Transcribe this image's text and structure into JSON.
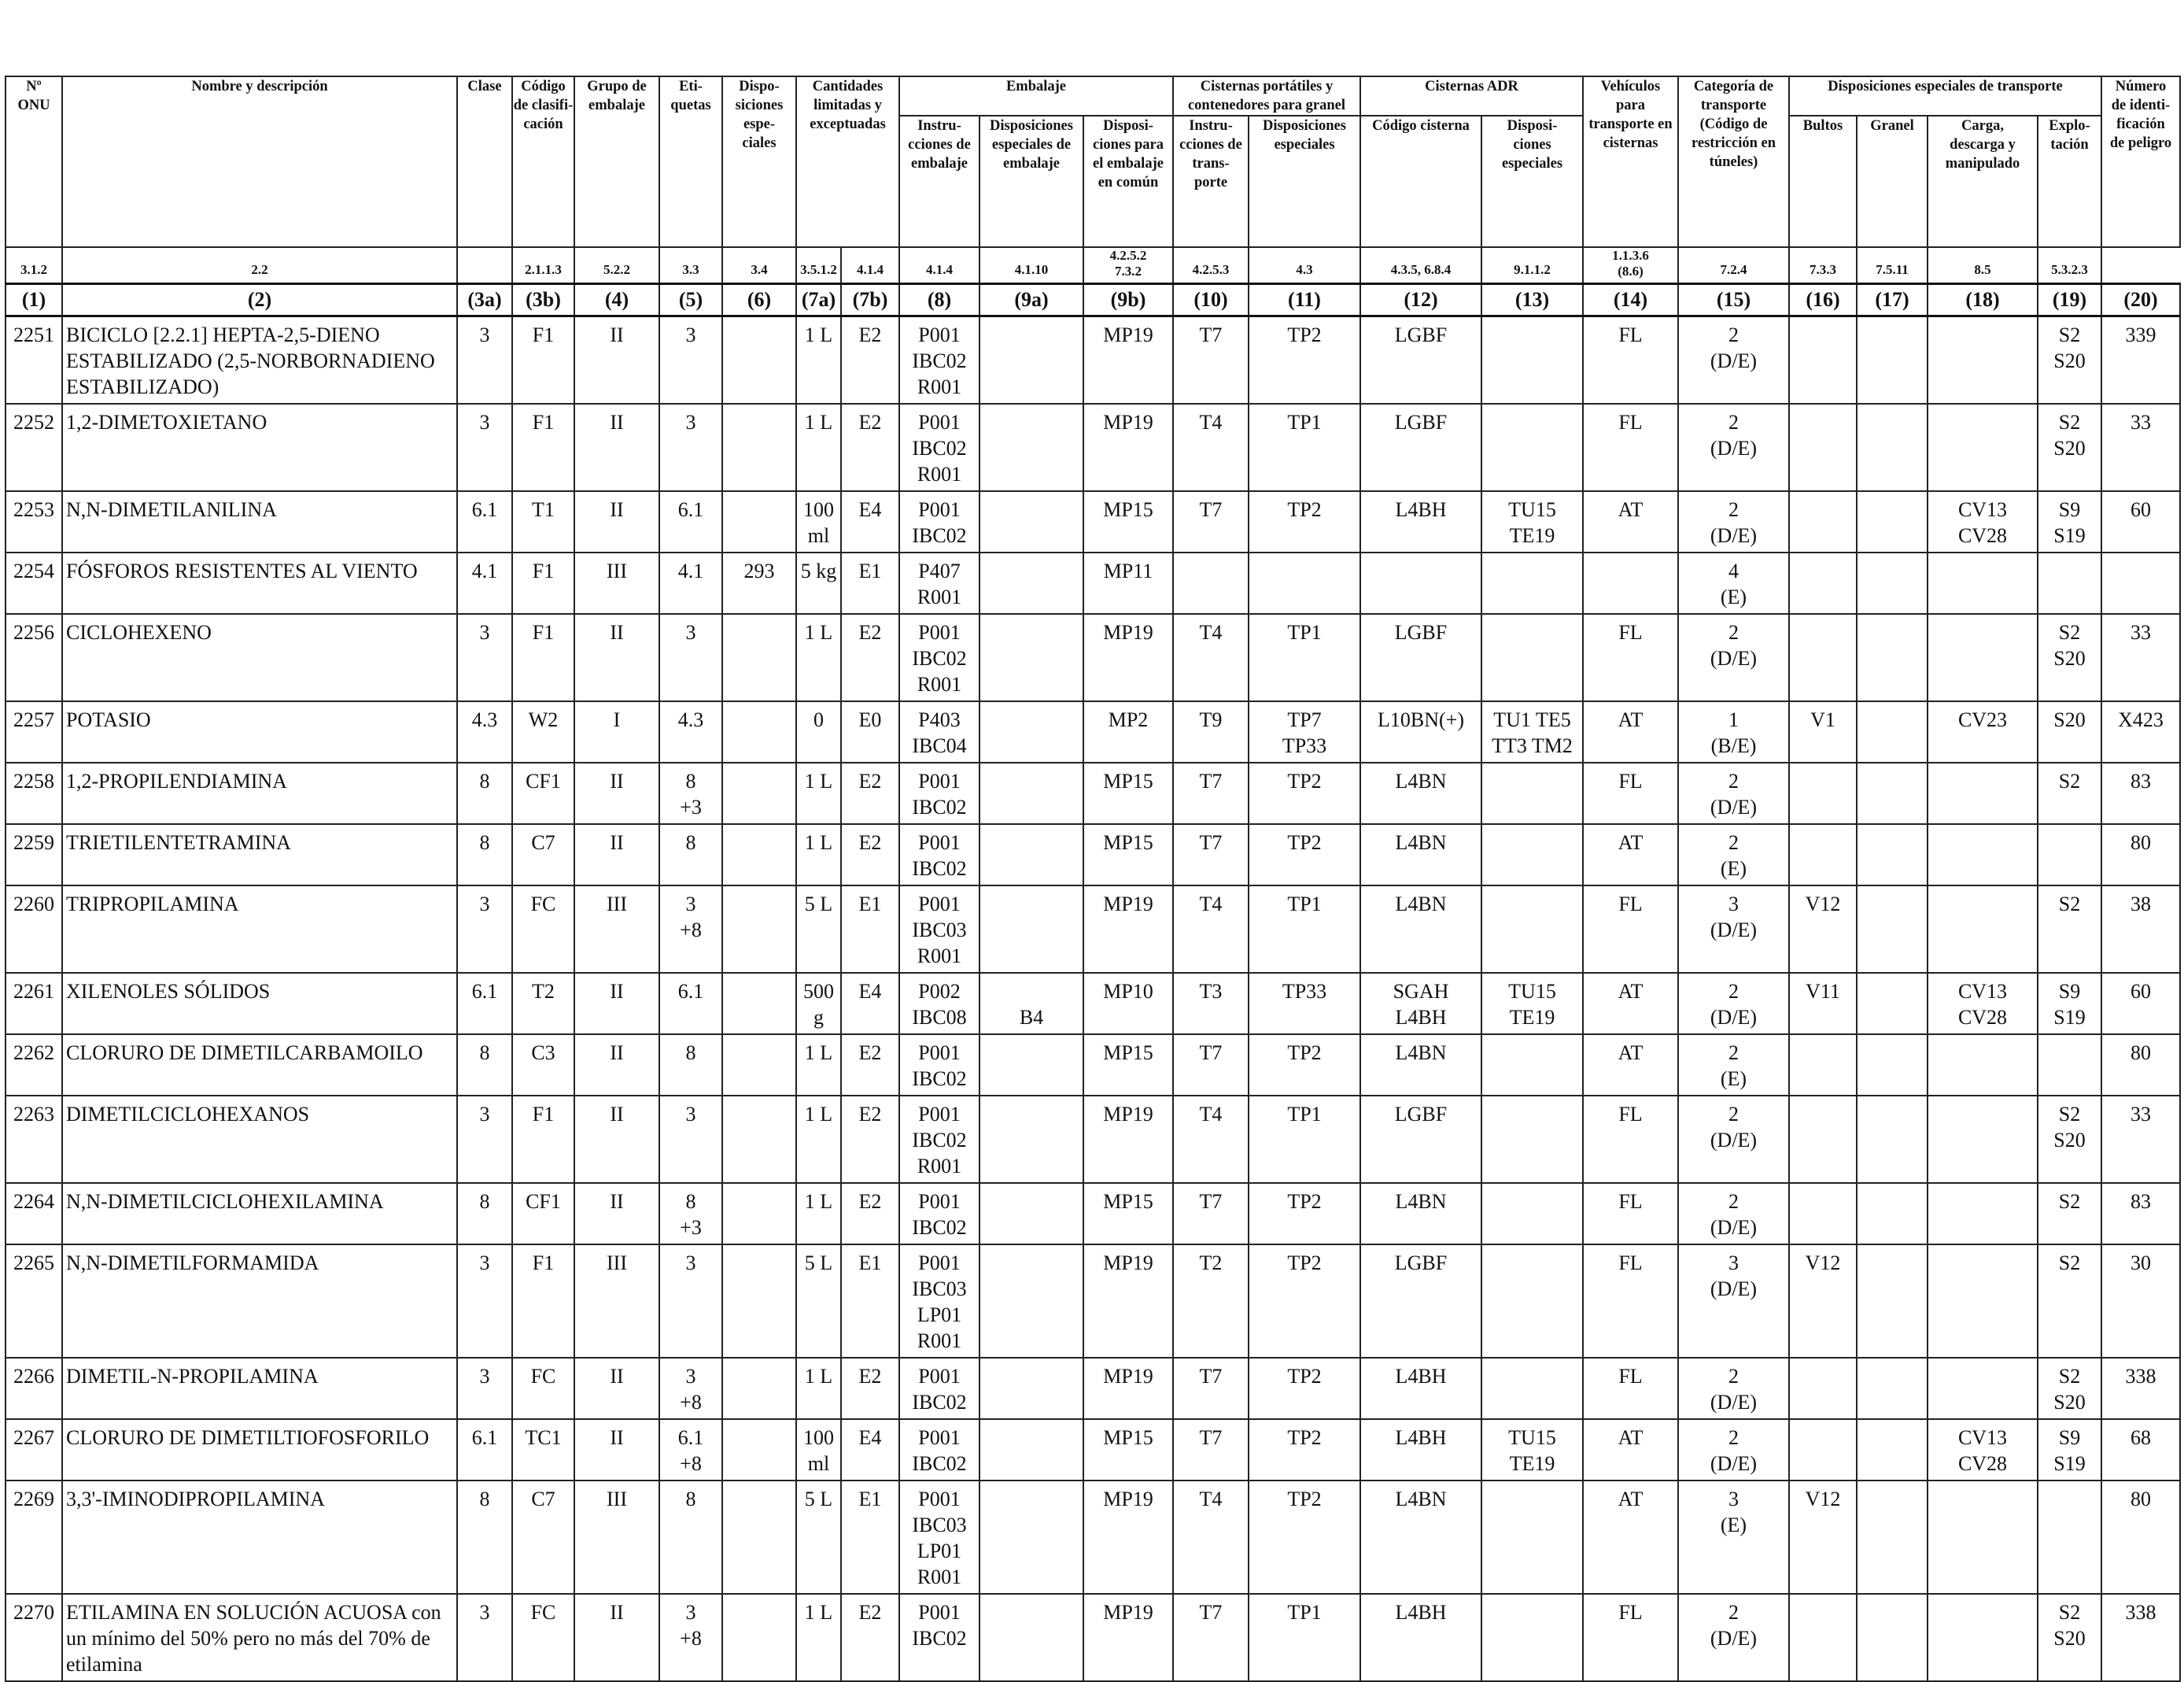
{
  "headers": {
    "onu": "Nº\nONU",
    "name": "Nombre y descripción",
    "clase": "Clase",
    "codigo": "Código\nde clasifi-\ncación",
    "grupo": "Grupo de\nembalaje",
    "etiquetas": "Eti-\nquetas",
    "dispo": "Dispo-\nsiciones\nespe-\nciales",
    "cantidades": "Cantidades\nlimitadas y\nexceptuadas",
    "embalaje": "Embalaje",
    "instr": "Instru-\ncciones de\nembalaje",
    "disp_emb": "Disposiciones\nespeciales de\nembalaje",
    "disp_comun": "Disposi-\nciones para\nel embalaje\nen común",
    "cisternas_port": "Cisternas portátiles y\ncontenedores para granel",
    "instr_transp": "Instru-\ncciones de\ntrans-\nporte",
    "disp_esp": "Disposiciones\nespeciales",
    "cisternas_adr": "Cisternas ADR",
    "codigo_cisterna": "Código cisterna",
    "disp_cist": "Disposi-\nciones\nespeciales",
    "vehiculos": "Vehículos\npara\ntransporte en\ncisternas",
    "categoria": "Categoría de\ntransporte\n(Código de\nrestricción en\ntúneles)",
    "disp_transporte": "Disposiciones especiales de transporte",
    "bultos": "Bultos",
    "granel": "Granel",
    "carga": "Carga,\ndescarga y\nmanipulado",
    "explotacion": "Explo-\ntación",
    "numero": "Número\nde identi-\nficación\nde peligro"
  },
  "sections": [
    "3.1.2",
    "2.2",
    "",
    "2.1.1.3",
    "5.2.2",
    "3.3",
    "3.4",
    "3.5.1.2",
    "4.1.4",
    "4.1.4",
    "4.1.10",
    "4.2.5.2\n7.3.2",
    "4.2.5.3",
    "4.3",
    "4.3.5, 6.8.4",
    "9.1.1.2",
    "1.1.3.6\n(8.6)",
    "7.2.4",
    "7.3.3",
    "7.5.11",
    "8.5",
    "5.3.2.3"
  ],
  "refs": [
    "(1)",
    "(2)",
    "(3a)",
    "(3b)",
    "(4)",
    "(5)",
    "(6)",
    "(7a)",
    "(7b)",
    "(8)",
    "(9a)",
    "(9b)",
    "(10)",
    "(11)",
    "(12)",
    "(13)",
    "(14)",
    "(15)",
    "(16)",
    "(17)",
    "(18)",
    "(19)",
    "(20)"
  ],
  "rows": [
    {
      "h": 103,
      "c": [
        "2251",
        "BICICLO [2.2.1] HEPTA-2,5-DIENO ESTABILIZADO (2,5-NORBORNADIENO ESTABILIZADO)",
        "3",
        "F1",
        "II",
        "3",
        "",
        "1 L",
        "E2",
        "P001\nIBC02\nR001",
        "",
        "MP19",
        "T7",
        "TP2",
        "LGBF",
        "",
        "FL",
        "2\n(D/E)",
        "",
        "",
        "",
        "S2\nS20",
        "339"
      ]
    },
    {
      "h": 104,
      "c": [
        "2252",
        "1,2-DIMETOXIETANO",
        "3",
        "F1",
        "II",
        "3",
        "",
        "1 L",
        "E2",
        "P001\nIBC02\nR001",
        "",
        "MP19",
        "T4",
        "TP1",
        "LGBF",
        "",
        "FL",
        "2\n(D/E)",
        "",
        "",
        "",
        "S2\nS20",
        "33"
      ]
    },
    {
      "h": 69,
      "c": [
        "2253",
        "N,N-DIMETILANILINA",
        "6.1",
        "T1",
        "II",
        "6.1",
        "",
        "100\nml",
        "E4",
        "P001\nIBC02",
        "",
        "MP15",
        "T7",
        "TP2",
        "L4BH",
        "TU15\nTE19",
        "AT",
        "2\n(D/E)",
        "",
        "",
        "CV13\nCV28",
        "S9\nS19",
        "60"
      ]
    },
    {
      "h": 69,
      "c": [
        "2254",
        "FÓSFOROS RESISTENTES AL VIENTO",
        "4.1",
        "F1",
        "III",
        "4.1",
        "293",
        "5 kg",
        "E1",
        "P407\nR001",
        "",
        "MP11",
        "",
        "",
        "",
        "",
        "",
        "4\n(E)",
        "",
        "",
        "",
        "",
        ""
      ]
    },
    {
      "h": 104,
      "c": [
        "2256",
        "CICLOHEXENO",
        "3",
        "F1",
        "II",
        "3",
        "",
        "1 L",
        "E2",
        "P001\nIBC02\nR001",
        "",
        "MP19",
        "T4",
        "TP1",
        "LGBF",
        "",
        "FL",
        "2\n(D/E)",
        "",
        "",
        "",
        "S2\nS20",
        "33"
      ]
    },
    {
      "h": 69,
      "c": [
        "2257",
        "POTASIO",
        "4.3",
        "W2",
        "I",
        "4.3",
        "",
        "0",
        "E0",
        "P403\nIBC04",
        "",
        "MP2",
        "T9",
        "TP7\nTP33",
        "L10BN(+)",
        "TU1 TE5\nTT3 TM2",
        "AT",
        "1\n(B/E)",
        "V1",
        "",
        "CV23",
        "S20",
        "X423"
      ]
    },
    {
      "h": 70,
      "c": [
        "2258",
        "1,2-PROPILENDIAMINA",
        "8",
        "CF1",
        "II",
        "8\n+3",
        "",
        "1 L",
        "E2",
        "P001\nIBC02",
        "",
        "MP15",
        "T7",
        "TP2",
        "L4BN",
        "",
        "FL",
        "2\n(D/E)",
        "",
        "",
        "",
        "S2",
        "83"
      ]
    },
    {
      "h": 69,
      "c": [
        "2259",
        "TRIETILENTETRAMINA",
        "8",
        "C7",
        "II",
        "8",
        "",
        "1 L",
        "E2",
        "P001\nIBC02",
        "",
        "MP15",
        "T7",
        "TP2",
        "L4BN",
        "",
        "AT",
        "2\n(E)",
        "",
        "",
        "",
        "",
        "80"
      ]
    },
    {
      "h": 104,
      "c": [
        "2260",
        "TRIPROPILAMINA",
        "3",
        "FC",
        "III",
        "3\n+8",
        "",
        "5 L",
        "E1",
        "P001\nIBC03\nR001",
        "",
        "MP19",
        "T4",
        "TP1",
        "L4BN",
        "",
        "FL",
        "3\n(D/E)",
        "V12",
        "",
        "",
        "S2",
        "38"
      ]
    },
    {
      "h": 69,
      "c": [
        "2261",
        "XILENOLES SÓLIDOS",
        "6.1",
        "T2",
        "II",
        "6.1",
        "",
        "500\ng",
        "E4",
        "P002\nIBC08",
        "\nB4",
        "MP10",
        "T3",
        "TP33",
        "SGAH\nL4BH",
        "TU15\nTE19",
        "AT",
        "2\n(D/E)",
        "V11",
        "",
        "CV13\nCV28",
        "S9\nS19",
        "60"
      ]
    },
    {
      "h": 69,
      "c": [
        "2262",
        "CLORURO DE DIMETILCARBAMOILO",
        "8",
        "C3",
        "II",
        "8",
        "",
        "1 L",
        "E2",
        "P001\nIBC02",
        "",
        "MP15",
        "T7",
        "TP2",
        "L4BN",
        "",
        "AT",
        "2\n(E)",
        "",
        "",
        "",
        "",
        "80"
      ]
    },
    {
      "h": 104,
      "c": [
        "2263",
        "DIMETILCICLOHEXANOS",
        "3",
        "F1",
        "II",
        "3",
        "",
        "1 L",
        "E2",
        "P001\nIBC02\nR001",
        "",
        "MP19",
        "T4",
        "TP1",
        "LGBF",
        "",
        "FL",
        "2\n(D/E)",
        "",
        "",
        "",
        "S2\nS20",
        "33"
      ]
    },
    {
      "h": 70,
      "c": [
        "2264",
        "N,N-DIMETILCICLOHEXILAMINA",
        "8",
        "CF1",
        "II",
        "8\n+3",
        "",
        "1 L",
        "E2",
        "P001\nIBC02",
        "",
        "MP15",
        "T7",
        "TP2",
        "L4BN",
        "",
        "FL",
        "2\n(D/E)",
        "",
        "",
        "",
        "S2",
        "83"
      ]
    },
    {
      "h": 137,
      "c": [
        "2265",
        "N,N-DIMETILFORMAMIDA",
        "3",
        "F1",
        "III",
        "3",
        "",
        "5 L",
        "E1",
        "P001\nIBC03\nLP01\nR001",
        "",
        "MP19",
        "T2",
        "TP2",
        "LGBF",
        "",
        "FL",
        "3\n(D/E)",
        "V12",
        "",
        "",
        "S2",
        "30"
      ]
    },
    {
      "h": 70,
      "c": [
        "2266",
        "DIMETIL-N-PROPILAMINA",
        "3",
        "FC",
        "II",
        "3\n+8",
        "",
        "1 L",
        "E2",
        "P001\nIBC02",
        "",
        "MP19",
        "T7",
        "TP2",
        "L4BH",
        "",
        "FL",
        "2\n(D/E)",
        "",
        "",
        "",
        "S2\nS20",
        "338"
      ]
    },
    {
      "h": 69,
      "c": [
        "2267",
        "CLORURO DE DIMETILTIOFOSFORILO",
        "6.1",
        "TC1",
        "II",
        "6.1\n+8",
        "",
        "100\nml",
        "E4",
        "P001\nIBC02",
        "",
        "MP15",
        "T7",
        "TP2",
        "L4BH",
        "TU15\nTE19",
        "AT",
        "2\n(D/E)",
        "",
        "",
        "CV13\nCV28",
        "S9\nS19",
        "68"
      ]
    },
    {
      "h": 135,
      "c": [
        "2269",
        "3,3'-IMINODIPROPILAMINA",
        "8",
        "C7",
        "III",
        "8",
        "",
        "5 L",
        "E1",
        "P001\nIBC03\nLP01\nR001",
        "",
        "MP19",
        "T4",
        "TP2",
        "L4BN",
        "",
        "AT",
        "3\n(E)",
        "V12",
        "",
        "",
        "",
        "80"
      ]
    },
    {
      "h": 105,
      "c": [
        "2270",
        "ETILAMINA EN SOLUCIÓN ACUOSA con un mínimo del 50% pero no más del 70% de etilamina",
        "3",
        "FC",
        "II",
        "3\n+8",
        "",
        "1 L",
        "E2",
        "P001\nIBC02",
        "",
        "MP19",
        "T7",
        "TP1",
        "L4BH",
        "",
        "FL",
        "2\n(D/E)",
        "",
        "",
        "",
        "S2\nS20",
        "338"
      ]
    }
  ]
}
